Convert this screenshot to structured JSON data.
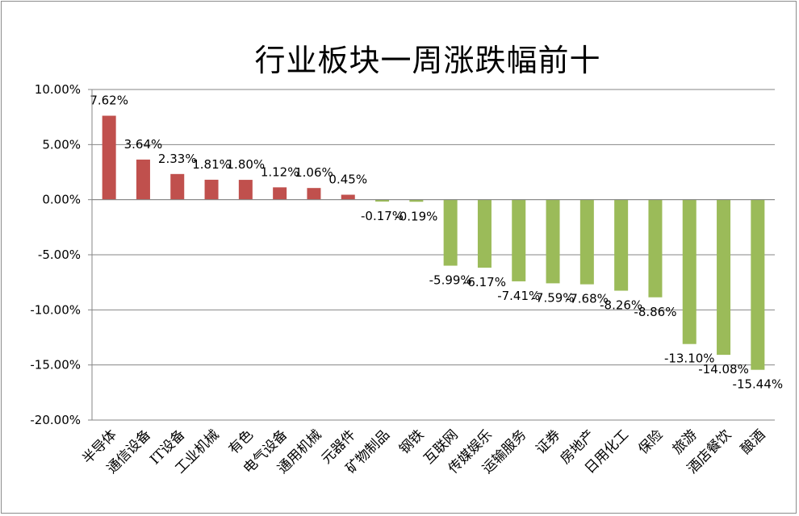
{
  "chart_data": {
    "type": "bar",
    "title": "行业板块一周涨跌幅前十",
    "xlabel": "",
    "ylabel": "",
    "ylim": [
      -20,
      10
    ],
    "yticks": [
      "10.00%",
      "5.00%",
      "0.00%",
      "-5.00%",
      "-10.00%",
      "-15.00%",
      "-20.00%"
    ],
    "ytick_values": [
      10,
      5,
      0,
      -5,
      -10,
      -15,
      -20
    ],
    "grid": true,
    "legend": "none",
    "positive_color": "#C0504D",
    "negative_color": "#9BBB59",
    "categories": [
      "半导体",
      "通信设备",
      "IT设备",
      "工业机械",
      "有色",
      "电气设备",
      "通用机械",
      "元器件",
      "矿物制品",
      "钢铁",
      "互联网",
      "传媒娱乐",
      "运输服务",
      "证券",
      "房地产",
      "日用化工",
      "保险",
      "旅游",
      "酒店餐饮",
      "酿酒"
    ],
    "values": [
      7.62,
      3.64,
      2.33,
      1.81,
      1.8,
      1.12,
      1.06,
      0.45,
      -0.17,
      -0.19,
      -5.99,
      -6.17,
      -7.41,
      -7.59,
      -7.68,
      -8.26,
      -8.86,
      -13.1,
      -14.08,
      -15.44
    ],
    "labels": [
      "7.62%",
      "3.64%",
      "2.33%",
      "1.81%",
      "1.80%",
      "1.12%",
      "1.06%",
      "0.45%",
      "-0.17%",
      "-0.19%",
      "-5.99%",
      "-6.17%",
      "-7.41%",
      "-7.59%",
      "-7.68%",
      "-8.26%",
      "-8.86%",
      "-13.10%",
      "-14.08%",
      "-15.44%"
    ]
  }
}
